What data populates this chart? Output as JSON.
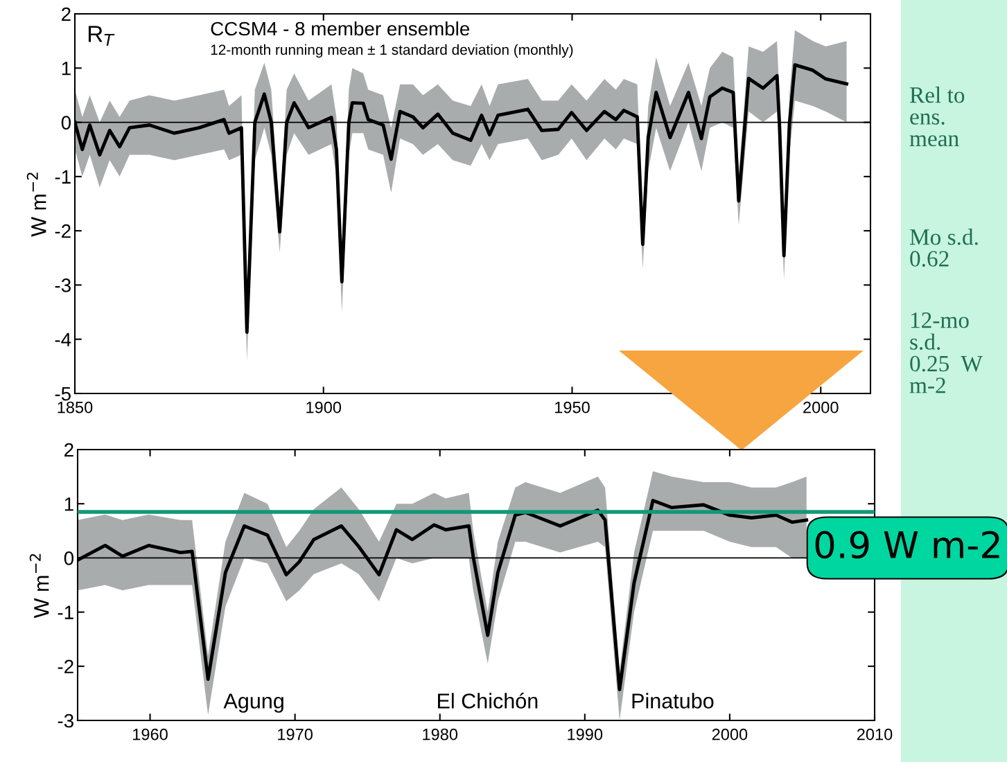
{
  "chart_data": [
    {
      "type": "line",
      "title": "CCSM4 - 8 member ensemble",
      "subtitle": "12-month running mean ± 1 standard deviation (monthly)",
      "ylabel": "W m$^{−2}$",
      "annotations": [
        "R$_{T}$",
        "Rel to\nens.\nmean",
        "Mo s.d.\n0.62",
        "12-mo\ns.d.\n0.25  W\nm-2"
      ],
      "xlim": [
        1850,
        2010
      ],
      "xticks": [
        1850,
        1900,
        1950,
        2000
      ],
      "ylim": [
        -5,
        2
      ],
      "yticks": [
        -5,
        -4,
        -3,
        -2,
        -1,
        0,
        1,
        2
      ],
      "ref_lines": [
        {
          "axis": "y",
          "value": 0,
          "color": "#000000"
        }
      ],
      "series": [
        {
          "color": "#000000",
          "x": [
            1850,
            1851.5,
            1853,
            1855,
            1857,
            1859,
            1861,
            1865,
            1870,
            1875,
            1880,
            1881,
            1883.5,
            1884.6,
            1886.2,
            1888.1,
            1889.5,
            1891.2,
            1892.6,
            1894.1,
            1897,
            1901.6,
            1902.6,
            1903.7,
            1905.1,
            1905.8,
            1908,
            1909,
            1912,
            1913.6,
            1915.4,
            1918,
            1920,
            1923,
            1926,
            1929.6,
            1931.8,
            1933.4,
            1935.1,
            1941.1,
            1943.9,
            1947.2,
            1949.9,
            1952.9,
            1956.5,
            1958.8,
            1960.4,
            1963.1,
            1964.2,
            1965.3,
            1966.9,
            1969.7,
            1973.4,
            1976,
            1977.7,
            1980.2,
            1982.4,
            1983.5,
            1985.5,
            1988.4,
            1991.2,
            1991.7,
            1992.6,
            1993.7,
            1994.8,
            1998.4,
            2001,
            2005.2
          ],
          "values": [
            0,
            -0.5,
            -0.05,
            -0.6,
            -0.15,
            -0.45,
            -0.1,
            -0.05,
            -0.2,
            -0.1,
            0.05,
            -0.2,
            -0.1,
            -3.87,
            0,
            0.52,
            0,
            -2.02,
            0,
            0.36,
            -0.1,
            0.09,
            -0.5,
            -2.94,
            0,
            0.36,
            0.35,
            0.05,
            -0.05,
            -0.68,
            0.2,
            0.1,
            -0.1,
            0.15,
            -0.2,
            -0.33,
            0.13,
            -0.23,
            0.13,
            0.24,
            -0.15,
            -0.13,
            0.18,
            -0.15,
            0.2,
            0.05,
            0.22,
            0.1,
            -2.25,
            -0.28,
            0.55,
            -0.28,
            0.55,
            -0.3,
            0.47,
            0.63,
            0.55,
            -1.45,
            0.81,
            0.63,
            0.86,
            -0.03,
            -2.46,
            -0.03,
            1.06,
            0.96,
            0.8,
            0.71
          ],
          "lower": [
            -0.5,
            -1.0,
            -0.6,
            -1.2,
            -0.7,
            -1.0,
            -0.6,
            -0.6,
            -0.7,
            -0.6,
            -0.5,
            -0.7,
            -0.6,
            -4.4,
            -0.7,
            -0.1,
            -0.6,
            -2.4,
            -0.6,
            -0.2,
            -0.6,
            -0.4,
            -1.0,
            -3.5,
            -0.6,
            -0.2,
            -0.2,
            -0.5,
            -0.6,
            -1.3,
            -0.3,
            -0.4,
            -0.6,
            -0.4,
            -0.7,
            -0.8,
            -0.4,
            -0.7,
            -0.4,
            -0.3,
            -0.7,
            -0.6,
            -0.3,
            -0.7,
            -0.3,
            -0.5,
            -0.3,
            -0.4,
            -2.7,
            -0.9,
            -0.1,
            -0.9,
            0,
            -0.9,
            -0.1,
            0,
            -0.1,
            -1.9,
            0.2,
            0,
            0.2,
            -0.6,
            -2.9,
            -0.6,
            0.4,
            0.3,
            0.2,
            0.0
          ],
          "upper": [
            0.6,
            0.1,
            0.5,
            0.0,
            0.4,
            0.1,
            0.4,
            0.5,
            0.4,
            0.5,
            0.6,
            0.3,
            0.5,
            -3.7,
            0.6,
            1.1,
            0.6,
            -1.7,
            0.6,
            0.9,
            0.4,
            0.7,
            0.1,
            -2.6,
            0.6,
            1.0,
            0.9,
            0.6,
            0.5,
            -0.1,
            0.7,
            0.7,
            0.5,
            0.7,
            0.4,
            0.3,
            0.7,
            0.3,
            0.7,
            0.8,
            0.4,
            0.4,
            0.7,
            0.4,
            0.8,
            0.6,
            0.8,
            0.7,
            -1.9,
            0.3,
            1.2,
            0.3,
            1.1,
            0.3,
            1.0,
            1.3,
            1.2,
            -1.0,
            1.4,
            1.3,
            1.5,
            0.5,
            -2.2,
            0.5,
            1.7,
            1.5,
            1.4,
            1.5
          ]
        }
      ]
    },
    {
      "type": "line",
      "ylabel": "W m$^{−2}$",
      "annotations": [
        "Agung",
        "El Chichón",
        "Pinatubo"
      ],
      "xlim": [
        1955,
        2010
      ],
      "xticks": [
        1960,
        1970,
        1980,
        1990,
        2000,
        2010
      ],
      "ylim": [
        -3,
        2
      ],
      "yticks": [
        -3,
        -2,
        -1,
        0,
        1,
        2
      ],
      "ref_lines": [
        {
          "axis": "y",
          "value": 0,
          "color": "#000000"
        },
        {
          "axis": "y",
          "value": 0.85,
          "label": "0.9 W m-2",
          "color": "#119977"
        }
      ],
      "series": [
        {
          "color": "#000000",
          "x": [
            1955,
            1956.9,
            1958.1,
            1959.9,
            1962.1,
            1962.9,
            1964,
            1965.2,
            1966.5,
            1968.1,
            1969.4,
            1970.3,
            1971.3,
            1973.2,
            1974.4,
            1975.8,
            1977,
            1978.1,
            1979.6,
            1980.4,
            1982.0,
            1982.3,
            1983.3,
            1984,
            1985.2,
            1985.9,
            1988.3,
            1990.9,
            1991.4,
            1992.4,
            1993.4,
            1994.7,
            1996,
            1998.2,
            2000,
            2001.5,
            2003.2,
            2004.3,
            2005.3
          ],
          "values": [
            -0.04,
            0.23,
            0.03,
            0.23,
            0.1,
            0.12,
            -2.24,
            -0.27,
            0.59,
            0.42,
            -0.31,
            -0.07,
            0.34,
            0.59,
            0.21,
            -0.31,
            0.52,
            0.34,
            0.61,
            0.52,
            0.59,
            0.02,
            -1.43,
            -0.27,
            0.79,
            0.84,
            0.59,
            0.88,
            0.7,
            -2.43,
            -0.46,
            1.06,
            0.93,
            0.98,
            0.79,
            0.74,
            0.79,
            0.66,
            0.7
          ],
          "lower": [
            -0.6,
            -0.5,
            -0.6,
            -0.5,
            -0.5,
            -0.5,
            -2.9,
            -0.9,
            0.0,
            -0.1,
            -0.8,
            -0.6,
            -0.3,
            -0.1,
            -0.3,
            -0.8,
            0.0,
            -0.1,
            0.0,
            0.0,
            0.0,
            -0.6,
            -1.95,
            -0.8,
            0.3,
            0.3,
            0.1,
            0.3,
            0.2,
            -3.0,
            -1.0,
            0.5,
            0.5,
            0.5,
            0.3,
            0.2,
            0.2,
            0.0,
            0.0
          ],
          "upper": [
            0.7,
            0.8,
            0.7,
            0.8,
            0.7,
            0.7,
            -1.8,
            0.3,
            1.2,
            1.0,
            0.2,
            0.5,
            0.9,
            1.3,
            0.9,
            0.3,
            1.0,
            1.0,
            1.2,
            1.1,
            1.2,
            0.5,
            -1.0,
            0.3,
            1.3,
            1.4,
            1.2,
            1.5,
            1.3,
            -2.1,
            0.1,
            1.6,
            1.5,
            1.4,
            1.4,
            1.3,
            1.3,
            1.4,
            1.5
          ]
        }
      ]
    }
  ]
}
